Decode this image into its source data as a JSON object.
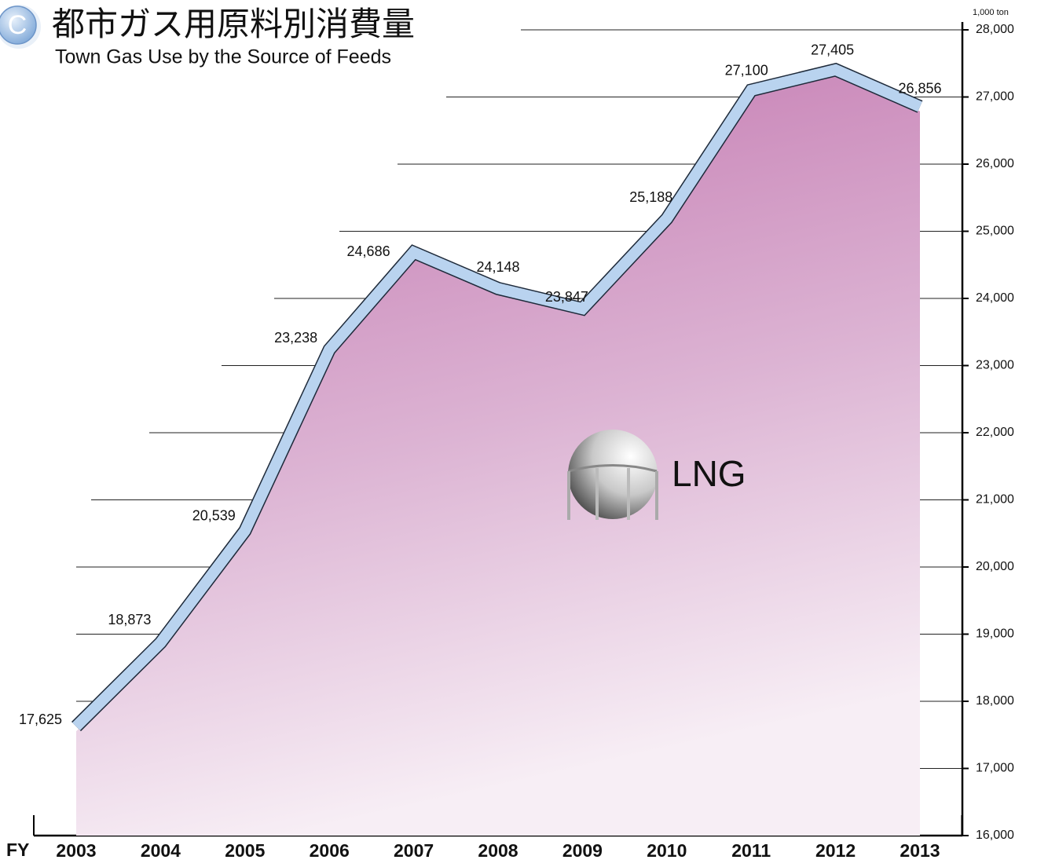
{
  "chart_data": {
    "type": "area",
    "badge": "C",
    "title": "都市ガス用原料別消費量",
    "subtitle": "Town Gas Use by the Source of Feeds",
    "annotation": "LNG",
    "y_unit": "1,000 ton",
    "x_label": "FY",
    "categories": [
      "2003",
      "2004",
      "2005",
      "2006",
      "2007",
      "2008",
      "2009",
      "2010",
      "2011",
      "2012",
      "2013"
    ],
    "values": [
      17625,
      18873,
      20539,
      23238,
      24686,
      24148,
      23847,
      25188,
      27100,
      27405,
      26856
    ],
    "value_labels": [
      "17,625",
      "18,873",
      "20,539",
      "23,238",
      "24,686",
      "24,148",
      "23,847",
      "25,188",
      "27,100",
      "27,405",
      "26,856"
    ],
    "color": "#b9d3ef",
    "ylim": [
      16000,
      28000
    ],
    "yticks": [
      {
        "value": 16000,
        "label": "16,000"
      },
      {
        "value": 17000,
        "label": "17,000"
      },
      {
        "value": 18000,
        "label": "18,000"
      },
      {
        "value": 19000,
        "label": "19,000"
      },
      {
        "value": 20000,
        "label": "20,000"
      },
      {
        "value": 21000,
        "label": "21,000"
      },
      {
        "value": 22000,
        "label": "22,000"
      },
      {
        "value": 23000,
        "label": "23,000"
      },
      {
        "value": 24000,
        "label": "24,000"
      },
      {
        "value": 25000,
        "label": "25,000"
      },
      {
        "value": 26000,
        "label": "26,000"
      },
      {
        "value": 27000,
        "label": "27,000"
      },
      {
        "value": 28000,
        "label": "28,000"
      }
    ],
    "grid": true
  }
}
